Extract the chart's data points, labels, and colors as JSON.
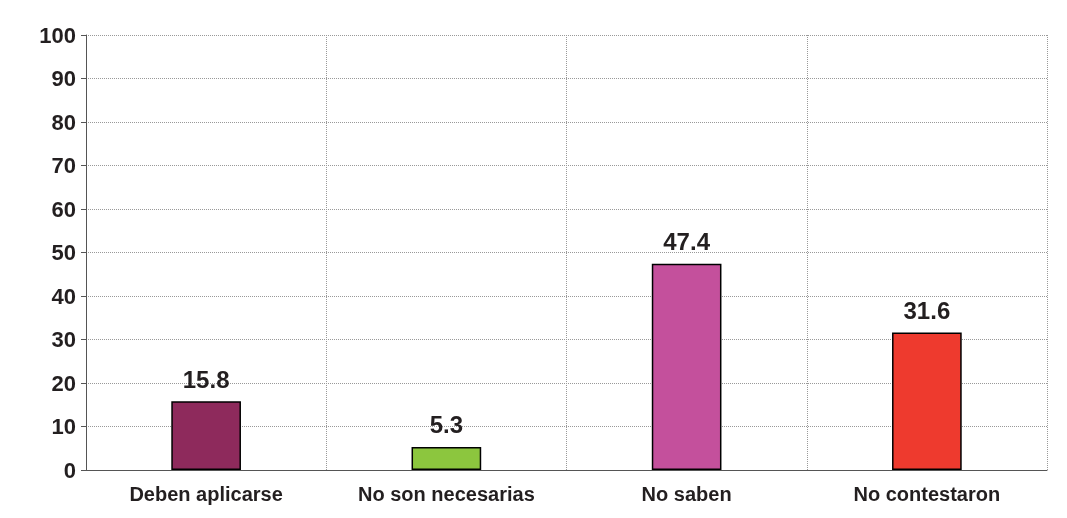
{
  "chart_data": {
    "type": "bar",
    "categories": [
      "Deben aplicarse",
      "No son necesarias",
      "No saben",
      "No contestaron"
    ],
    "values": [
      15.8,
      5.3,
      47.4,
      31.6
    ],
    "colors": [
      "#8e2a5c",
      "#8cc63e",
      "#c4509c",
      "#ee3a2e"
    ],
    "ylim": [
      0,
      100
    ],
    "yticks": [
      0,
      10,
      20,
      30,
      40,
      50,
      60,
      70,
      80,
      90,
      100
    ],
    "grid": true,
    "data_labels": true
  }
}
